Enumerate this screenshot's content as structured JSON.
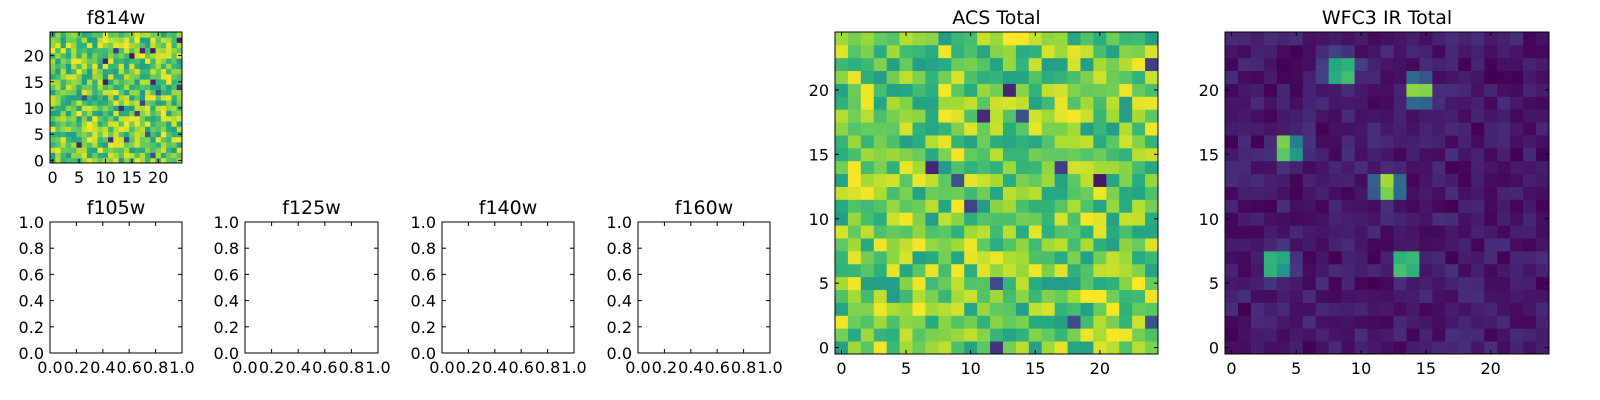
{
  "chart_data": [
    {
      "id": "f814w",
      "type": "heatmap",
      "title": "f814w",
      "colormap": "viridis",
      "grid_size": 25,
      "pattern": "noise",
      "seed": 814,
      "low": 0.55,
      "high": 1.0,
      "dark_fraction": 0.03,
      "xticks": [
        0,
        5,
        10,
        15,
        20
      ],
      "yticks": [
        0,
        5,
        10,
        15,
        20
      ],
      "xlim": [
        -0.5,
        24.5
      ],
      "ylim": [
        -0.5,
        24.5
      ]
    },
    {
      "id": "f105w",
      "type": "empty",
      "title": "f105w",
      "xlim": [
        0,
        1
      ],
      "ylim": [
        0,
        1
      ],
      "xticks": [
        "0.0",
        "0.2",
        "0.4",
        "0.6",
        "0.8",
        "1.0"
      ],
      "yticks": [
        "0.0",
        "0.2",
        "0.4",
        "0.6",
        "0.8",
        "1.0"
      ]
    },
    {
      "id": "f125w",
      "type": "empty",
      "title": "f125w",
      "xlim": [
        0,
        1
      ],
      "ylim": [
        0,
        1
      ],
      "xticks": [
        "0.0",
        "0.2",
        "0.4",
        "0.6",
        "0.8",
        "1.0"
      ],
      "yticks": [
        "0.0",
        "0.2",
        "0.4",
        "0.6",
        "0.8",
        "1.0"
      ]
    },
    {
      "id": "f140w",
      "type": "empty",
      "title": "f140w",
      "xlim": [
        0,
        1
      ],
      "ylim": [
        0,
        1
      ],
      "xticks": [
        "0.0",
        "0.2",
        "0.4",
        "0.6",
        "0.8",
        "1.0"
      ],
      "yticks": [
        "0.0",
        "0.2",
        "0.4",
        "0.6",
        "0.8",
        "1.0"
      ]
    },
    {
      "id": "f160w",
      "type": "empty",
      "title": "f160w",
      "xlim": [
        0,
        1
      ],
      "ylim": [
        0,
        1
      ],
      "xticks": [
        "0.0",
        "0.2",
        "0.4",
        "0.6",
        "0.8",
        "1.0"
      ],
      "yticks": [
        "0.0",
        "0.2",
        "0.4",
        "0.6",
        "0.8",
        "1.0"
      ]
    },
    {
      "id": "acs_total",
      "type": "heatmap",
      "title": "ACS Total",
      "colormap": "viridis",
      "grid_size": 25,
      "pattern": "noise",
      "seed": 4242,
      "low": 0.55,
      "high": 1.0,
      "dark_fraction": 0.02,
      "xticks": [
        0,
        5,
        10,
        15,
        20
      ],
      "yticks": [
        0,
        5,
        10,
        15,
        20
      ],
      "xlim": [
        -0.5,
        24.5
      ],
      "ylim": [
        -0.5,
        24.5
      ]
    },
    {
      "id": "wfc3_ir_total",
      "type": "heatmap",
      "title": "WFC3 IR Total",
      "colormap": "viridis",
      "grid_size": 25,
      "pattern": "sources",
      "seed": 99,
      "low": 0.0,
      "high": 0.14,
      "xticks": [
        0,
        5,
        10,
        15,
        20
      ],
      "yticks": [
        0,
        5,
        10,
        15,
        20
      ],
      "xlim": [
        -0.5,
        24.5
      ],
      "ylim": [
        -0.5,
        24.5
      ],
      "sources": [
        {
          "x": 8.5,
          "y": 21.5,
          "peak": 1.0
        },
        {
          "x": 14.5,
          "y": 20.0,
          "peak": 1.0
        },
        {
          "x": 4.3,
          "y": 15.5,
          "peak": 1.0
        },
        {
          "x": 12.0,
          "y": 12.5,
          "peak": 1.0
        },
        {
          "x": 3.5,
          "y": 6.5,
          "peak": 0.9
        },
        {
          "x": 13.5,
          "y": 6.5,
          "peak": 1.0
        }
      ]
    }
  ]
}
